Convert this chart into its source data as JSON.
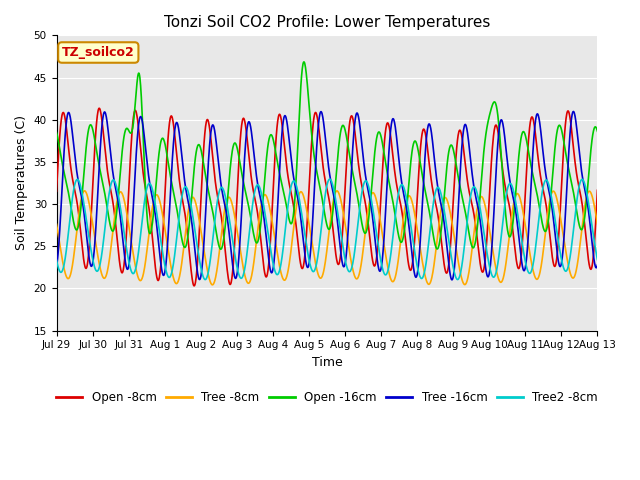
{
  "title": "Tonzi Soil CO2 Profile: Lower Temperatures",
  "xlabel": "Time",
  "ylabel": "Soil Temperatures (C)",
  "ylim": [
    15,
    50
  ],
  "xlim_start": 0,
  "xlim_end": 15,
  "annotation_text": "TZ_soilco2",
  "annotation_color": "#cc0000",
  "annotation_bg": "#ffffcc",
  "annotation_border": "#cc8800",
  "series": {
    "open_8cm": {
      "label": "Open -8cm",
      "color": "#dd0000",
      "linewidth": 1.2
    },
    "tree_8cm": {
      "label": "Tree -8cm",
      "color": "#ffaa00",
      "linewidth": 1.2
    },
    "open_16cm": {
      "label": "Open -16cm",
      "color": "#00cc00",
      "linewidth": 1.2
    },
    "tree_16cm": {
      "label": "Tree -16cm",
      "color": "#0000cc",
      "linewidth": 1.2
    },
    "tree2_8cm": {
      "label": "Tree2 -8cm",
      "color": "#00cccc",
      "linewidth": 1.2
    }
  },
  "xtick_labels": [
    "Jul 29",
    "Jul 30",
    "Jul 31",
    "Aug 1",
    "Aug 2",
    "Aug 3",
    "Aug 4",
    "Aug 5",
    "Aug 6",
    "Aug 7",
    "Aug 8",
    "Aug 9",
    "Aug 10",
    "Aug 11",
    "Aug 12",
    "Aug 13"
  ],
  "bg_color": "#e8e8e8",
  "grid_color": "white",
  "title_fontsize": 11,
  "label_fontsize": 9,
  "tick_fontsize": 7.5,
  "legend_fontsize": 8.5
}
